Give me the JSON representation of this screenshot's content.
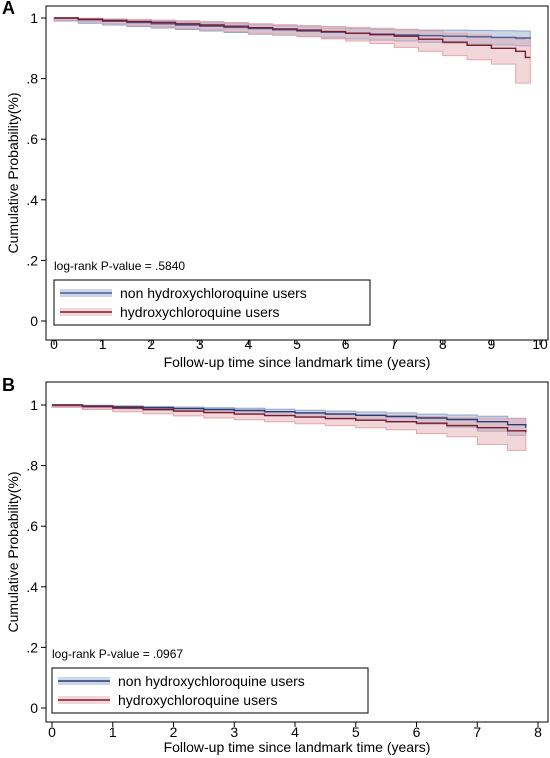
{
  "chart_data": [
    {
      "panel": "A",
      "type": "line",
      "xlabel": "Follow-up time since landmark time (years)",
      "ylabel": "Cumulative Probability(%)",
      "xlim": [
        0,
        10
      ],
      "ylim": [
        0,
        1
      ],
      "x_ticks": [
        0,
        1,
        2,
        3,
        4,
        5,
        6,
        7,
        8,
        9,
        10
      ],
      "y_ticks": [
        0,
        0.2,
        0.4,
        0.6,
        0.8,
        1
      ],
      "y_tick_labels": [
        "0",
        ".2",
        ".4",
        ".6",
        ".8",
        "1"
      ],
      "annotation": "log-rank P-value = .5840",
      "legend": "bottom-left",
      "series": [
        {
          "name": "non hydroxychloroquine users",
          "color": "#4a5a96",
          "band_color": "#8fa6c8",
          "x": [
            0,
            0.5,
            1,
            1.5,
            2,
            2.5,
            3,
            3.5,
            4,
            4.5,
            5,
            5.5,
            6,
            6.5,
            7,
            7.5,
            8,
            8.5,
            9,
            9.5,
            9.8
          ],
          "y": [
            1.0,
            0.994,
            0.989,
            0.985,
            0.981,
            0.977,
            0.973,
            0.969,
            0.965,
            0.961,
            0.957,
            0.953,
            0.95,
            0.947,
            0.944,
            0.942,
            0.94,
            0.938,
            0.936,
            0.934,
            0.932
          ],
          "lower": [
            1.0,
            0.99,
            0.983,
            0.977,
            0.972,
            0.967,
            0.962,
            0.957,
            0.952,
            0.947,
            0.943,
            0.939,
            0.935,
            0.931,
            0.927,
            0.924,
            0.92,
            0.917,
            0.914,
            0.911,
            0.908
          ],
          "upper": [
            1.0,
            0.998,
            0.995,
            0.993,
            0.99,
            0.987,
            0.984,
            0.981,
            0.978,
            0.975,
            0.971,
            0.967,
            0.965,
            0.963,
            0.961,
            0.96,
            0.96,
            0.959,
            0.958,
            0.957,
            0.956
          ]
        },
        {
          "name": "hydroxychloroquine users",
          "color": "#7a1a2e",
          "band_color": "#e2a6ae",
          "x": [
            0,
            0.5,
            1,
            1.5,
            2,
            2.5,
            3,
            3.5,
            4,
            4.5,
            5,
            5.5,
            6,
            6.5,
            7,
            7.5,
            8,
            8.5,
            9,
            9.5,
            9.7,
            9.8
          ],
          "y": [
            1.0,
            0.996,
            0.992,
            0.988,
            0.985,
            0.981,
            0.977,
            0.973,
            0.968,
            0.964,
            0.96,
            0.955,
            0.95,
            0.945,
            0.94,
            0.93,
            0.92,
            0.91,
            0.9,
            0.89,
            0.87,
            0.87
          ],
          "lower": [
            1.0,
            0.993,
            0.987,
            0.981,
            0.976,
            0.971,
            0.966,
            0.961,
            0.955,
            0.949,
            0.944,
            0.938,
            0.931,
            0.924,
            0.916,
            0.903,
            0.89,
            0.876,
            0.862,
            0.848,
            0.785,
            0.785
          ],
          "upper": [
            1.0,
            0.999,
            0.997,
            0.995,
            0.993,
            0.991,
            0.988,
            0.985,
            0.981,
            0.978,
            0.975,
            0.972,
            0.969,
            0.966,
            0.963,
            0.957,
            0.95,
            0.944,
            0.937,
            0.93,
            0.935,
            0.935
          ]
        }
      ]
    },
    {
      "panel": "B",
      "type": "line",
      "xlabel": "Follow-up time since landmark time (years)",
      "ylabel": "Cumulative Probability(%)",
      "xlim": [
        0,
        8
      ],
      "ylim": [
        0,
        1
      ],
      "x_ticks": [
        0,
        1,
        2,
        3,
        4,
        5,
        6,
        7,
        8
      ],
      "y_ticks": [
        0,
        0.2,
        0.4,
        0.6,
        0.8,
        1
      ],
      "y_tick_labels": [
        "0",
        ".2",
        ".4",
        ".6",
        ".8",
        "1"
      ],
      "annotation": "log-rank P-value = .0967",
      "legend": "bottom-left",
      "series": [
        {
          "name": "non hydroxychloroquine users",
          "color": "#2a3a7a",
          "band_color": "#8fa6c8",
          "x": [
            0,
            0.5,
            1,
            1.5,
            2,
            2.5,
            3,
            3.5,
            4,
            4.5,
            5,
            5.5,
            6,
            6.5,
            7,
            7.5,
            7.8
          ],
          "y": [
            1.0,
            0.997,
            0.994,
            0.991,
            0.988,
            0.985,
            0.982,
            0.978,
            0.974,
            0.97,
            0.966,
            0.962,
            0.957,
            0.952,
            0.945,
            0.935,
            0.925
          ],
          "lower": [
            1.0,
            0.995,
            0.991,
            0.987,
            0.983,
            0.979,
            0.975,
            0.97,
            0.965,
            0.96,
            0.955,
            0.95,
            0.944,
            0.937,
            0.927,
            0.914,
            0.9
          ],
          "upper": [
            1.0,
            0.999,
            0.997,
            0.995,
            0.993,
            0.991,
            0.989,
            0.986,
            0.983,
            0.98,
            0.977,
            0.974,
            0.97,
            0.967,
            0.963,
            0.956,
            0.95
          ]
        },
        {
          "name": "hydroxychloroquine users",
          "color": "#7a1a2e",
          "band_color": "#e2a6ae",
          "x": [
            0,
            0.5,
            1,
            1.5,
            2,
            2.5,
            3,
            3.5,
            4,
            4.5,
            5,
            5.5,
            6,
            6.5,
            7,
            7.5,
            7.8
          ],
          "y": [
            1.0,
            0.995,
            0.99,
            0.985,
            0.98,
            0.975,
            0.97,
            0.965,
            0.96,
            0.955,
            0.95,
            0.945,
            0.94,
            0.932,
            0.925,
            0.915,
            0.91
          ],
          "lower": [
            1.0,
            0.992,
            0.985,
            0.978,
            0.971,
            0.964,
            0.957,
            0.951,
            0.945,
            0.938,
            0.932,
            0.925,
            0.918,
            0.906,
            0.895,
            0.87,
            0.85
          ],
          "upper": [
            1.0,
            0.998,
            0.995,
            0.992,
            0.989,
            0.986,
            0.983,
            0.979,
            0.975,
            0.972,
            0.968,
            0.965,
            0.962,
            0.958,
            0.955,
            0.955,
            0.955
          ]
        }
      ]
    }
  ]
}
